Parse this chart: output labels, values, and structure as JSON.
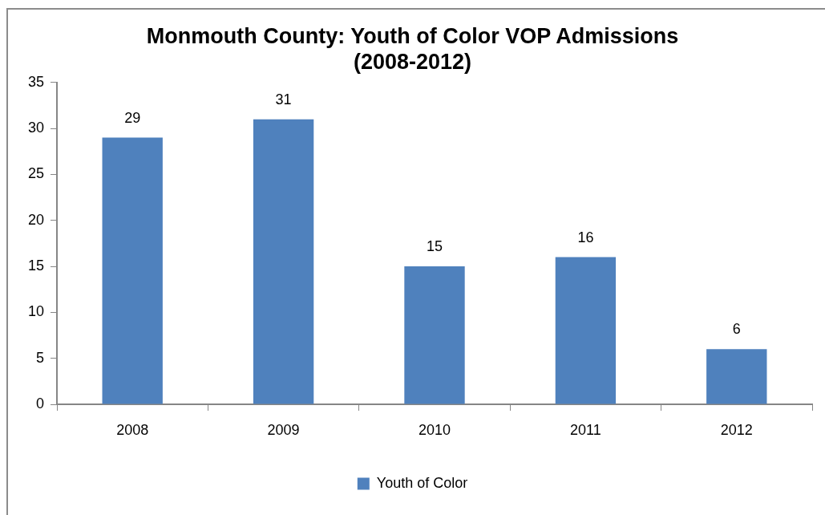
{
  "chart_data": {
    "type": "bar",
    "title": "Monmouth County: Youth of Color VOP Admissions (2008-2012)",
    "categories": [
      "2008",
      "2009",
      "2010",
      "2011",
      "2012"
    ],
    "series": [
      {
        "name": "Youth of Color",
        "color": "#4f81bd",
        "values": [
          29,
          31,
          15,
          16,
          6
        ]
      }
    ],
    "ylim": [
      0,
      35
    ],
    "yticks": [
      0,
      5,
      10,
      15,
      20,
      25,
      30,
      35
    ],
    "legend": "bottom",
    "data_labels": true
  }
}
